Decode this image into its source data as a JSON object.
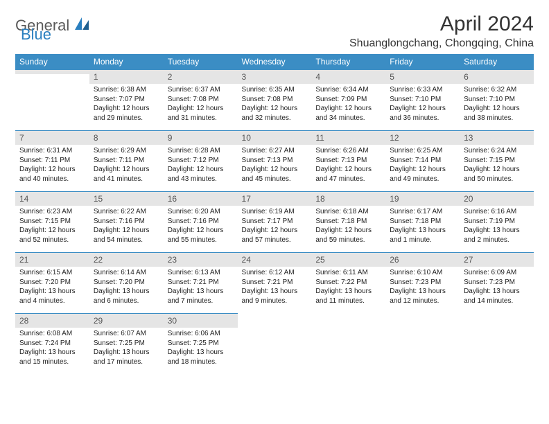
{
  "brand": {
    "part1": "General",
    "part2": "Blue"
  },
  "title": "April 2024",
  "location": "Shuanglongchang, Chongqing, China",
  "colors": {
    "header_bg": "#3b8dc4",
    "header_text": "#ffffff",
    "daynum_bg": "#e5e5e5",
    "border": "#3b8dc4",
    "logo_gray": "#5a5a5a",
    "logo_blue": "#2a7fbf"
  },
  "weekdays": [
    "Sunday",
    "Monday",
    "Tuesday",
    "Wednesday",
    "Thursday",
    "Friday",
    "Saturday"
  ],
  "weeks": [
    [
      {
        "day": "",
        "sunrise": "",
        "sunset": "",
        "daylight": ""
      },
      {
        "day": "1",
        "sunrise": "Sunrise: 6:38 AM",
        "sunset": "Sunset: 7:07 PM",
        "daylight": "Daylight: 12 hours and 29 minutes."
      },
      {
        "day": "2",
        "sunrise": "Sunrise: 6:37 AM",
        "sunset": "Sunset: 7:08 PM",
        "daylight": "Daylight: 12 hours and 31 minutes."
      },
      {
        "day": "3",
        "sunrise": "Sunrise: 6:35 AM",
        "sunset": "Sunset: 7:08 PM",
        "daylight": "Daylight: 12 hours and 32 minutes."
      },
      {
        "day": "4",
        "sunrise": "Sunrise: 6:34 AM",
        "sunset": "Sunset: 7:09 PM",
        "daylight": "Daylight: 12 hours and 34 minutes."
      },
      {
        "day": "5",
        "sunrise": "Sunrise: 6:33 AM",
        "sunset": "Sunset: 7:10 PM",
        "daylight": "Daylight: 12 hours and 36 minutes."
      },
      {
        "day": "6",
        "sunrise": "Sunrise: 6:32 AM",
        "sunset": "Sunset: 7:10 PM",
        "daylight": "Daylight: 12 hours and 38 minutes."
      }
    ],
    [
      {
        "day": "7",
        "sunrise": "Sunrise: 6:31 AM",
        "sunset": "Sunset: 7:11 PM",
        "daylight": "Daylight: 12 hours and 40 minutes."
      },
      {
        "day": "8",
        "sunrise": "Sunrise: 6:29 AM",
        "sunset": "Sunset: 7:11 PM",
        "daylight": "Daylight: 12 hours and 41 minutes."
      },
      {
        "day": "9",
        "sunrise": "Sunrise: 6:28 AM",
        "sunset": "Sunset: 7:12 PM",
        "daylight": "Daylight: 12 hours and 43 minutes."
      },
      {
        "day": "10",
        "sunrise": "Sunrise: 6:27 AM",
        "sunset": "Sunset: 7:13 PM",
        "daylight": "Daylight: 12 hours and 45 minutes."
      },
      {
        "day": "11",
        "sunrise": "Sunrise: 6:26 AM",
        "sunset": "Sunset: 7:13 PM",
        "daylight": "Daylight: 12 hours and 47 minutes."
      },
      {
        "day": "12",
        "sunrise": "Sunrise: 6:25 AM",
        "sunset": "Sunset: 7:14 PM",
        "daylight": "Daylight: 12 hours and 49 minutes."
      },
      {
        "day": "13",
        "sunrise": "Sunrise: 6:24 AM",
        "sunset": "Sunset: 7:15 PM",
        "daylight": "Daylight: 12 hours and 50 minutes."
      }
    ],
    [
      {
        "day": "14",
        "sunrise": "Sunrise: 6:23 AM",
        "sunset": "Sunset: 7:15 PM",
        "daylight": "Daylight: 12 hours and 52 minutes."
      },
      {
        "day": "15",
        "sunrise": "Sunrise: 6:22 AM",
        "sunset": "Sunset: 7:16 PM",
        "daylight": "Daylight: 12 hours and 54 minutes."
      },
      {
        "day": "16",
        "sunrise": "Sunrise: 6:20 AM",
        "sunset": "Sunset: 7:16 PM",
        "daylight": "Daylight: 12 hours and 55 minutes."
      },
      {
        "day": "17",
        "sunrise": "Sunrise: 6:19 AM",
        "sunset": "Sunset: 7:17 PM",
        "daylight": "Daylight: 12 hours and 57 minutes."
      },
      {
        "day": "18",
        "sunrise": "Sunrise: 6:18 AM",
        "sunset": "Sunset: 7:18 PM",
        "daylight": "Daylight: 12 hours and 59 minutes."
      },
      {
        "day": "19",
        "sunrise": "Sunrise: 6:17 AM",
        "sunset": "Sunset: 7:18 PM",
        "daylight": "Daylight: 13 hours and 1 minute."
      },
      {
        "day": "20",
        "sunrise": "Sunrise: 6:16 AM",
        "sunset": "Sunset: 7:19 PM",
        "daylight": "Daylight: 13 hours and 2 minutes."
      }
    ],
    [
      {
        "day": "21",
        "sunrise": "Sunrise: 6:15 AM",
        "sunset": "Sunset: 7:20 PM",
        "daylight": "Daylight: 13 hours and 4 minutes."
      },
      {
        "day": "22",
        "sunrise": "Sunrise: 6:14 AM",
        "sunset": "Sunset: 7:20 PM",
        "daylight": "Daylight: 13 hours and 6 minutes."
      },
      {
        "day": "23",
        "sunrise": "Sunrise: 6:13 AM",
        "sunset": "Sunset: 7:21 PM",
        "daylight": "Daylight: 13 hours and 7 minutes."
      },
      {
        "day": "24",
        "sunrise": "Sunrise: 6:12 AM",
        "sunset": "Sunset: 7:21 PM",
        "daylight": "Daylight: 13 hours and 9 minutes."
      },
      {
        "day": "25",
        "sunrise": "Sunrise: 6:11 AM",
        "sunset": "Sunset: 7:22 PM",
        "daylight": "Daylight: 13 hours and 11 minutes."
      },
      {
        "day": "26",
        "sunrise": "Sunrise: 6:10 AM",
        "sunset": "Sunset: 7:23 PM",
        "daylight": "Daylight: 13 hours and 12 minutes."
      },
      {
        "day": "27",
        "sunrise": "Sunrise: 6:09 AM",
        "sunset": "Sunset: 7:23 PM",
        "daylight": "Daylight: 13 hours and 14 minutes."
      }
    ],
    [
      {
        "day": "28",
        "sunrise": "Sunrise: 6:08 AM",
        "sunset": "Sunset: 7:24 PM",
        "daylight": "Daylight: 13 hours and 15 minutes."
      },
      {
        "day": "29",
        "sunrise": "Sunrise: 6:07 AM",
        "sunset": "Sunset: 7:25 PM",
        "daylight": "Daylight: 13 hours and 17 minutes."
      },
      {
        "day": "30",
        "sunrise": "Sunrise: 6:06 AM",
        "sunset": "Sunset: 7:25 PM",
        "daylight": "Daylight: 13 hours and 18 minutes."
      },
      {
        "day": "",
        "sunrise": "",
        "sunset": "",
        "daylight": ""
      },
      {
        "day": "",
        "sunrise": "",
        "sunset": "",
        "daylight": ""
      },
      {
        "day": "",
        "sunrise": "",
        "sunset": "",
        "daylight": ""
      },
      {
        "day": "",
        "sunrise": "",
        "sunset": "",
        "daylight": ""
      }
    ]
  ]
}
